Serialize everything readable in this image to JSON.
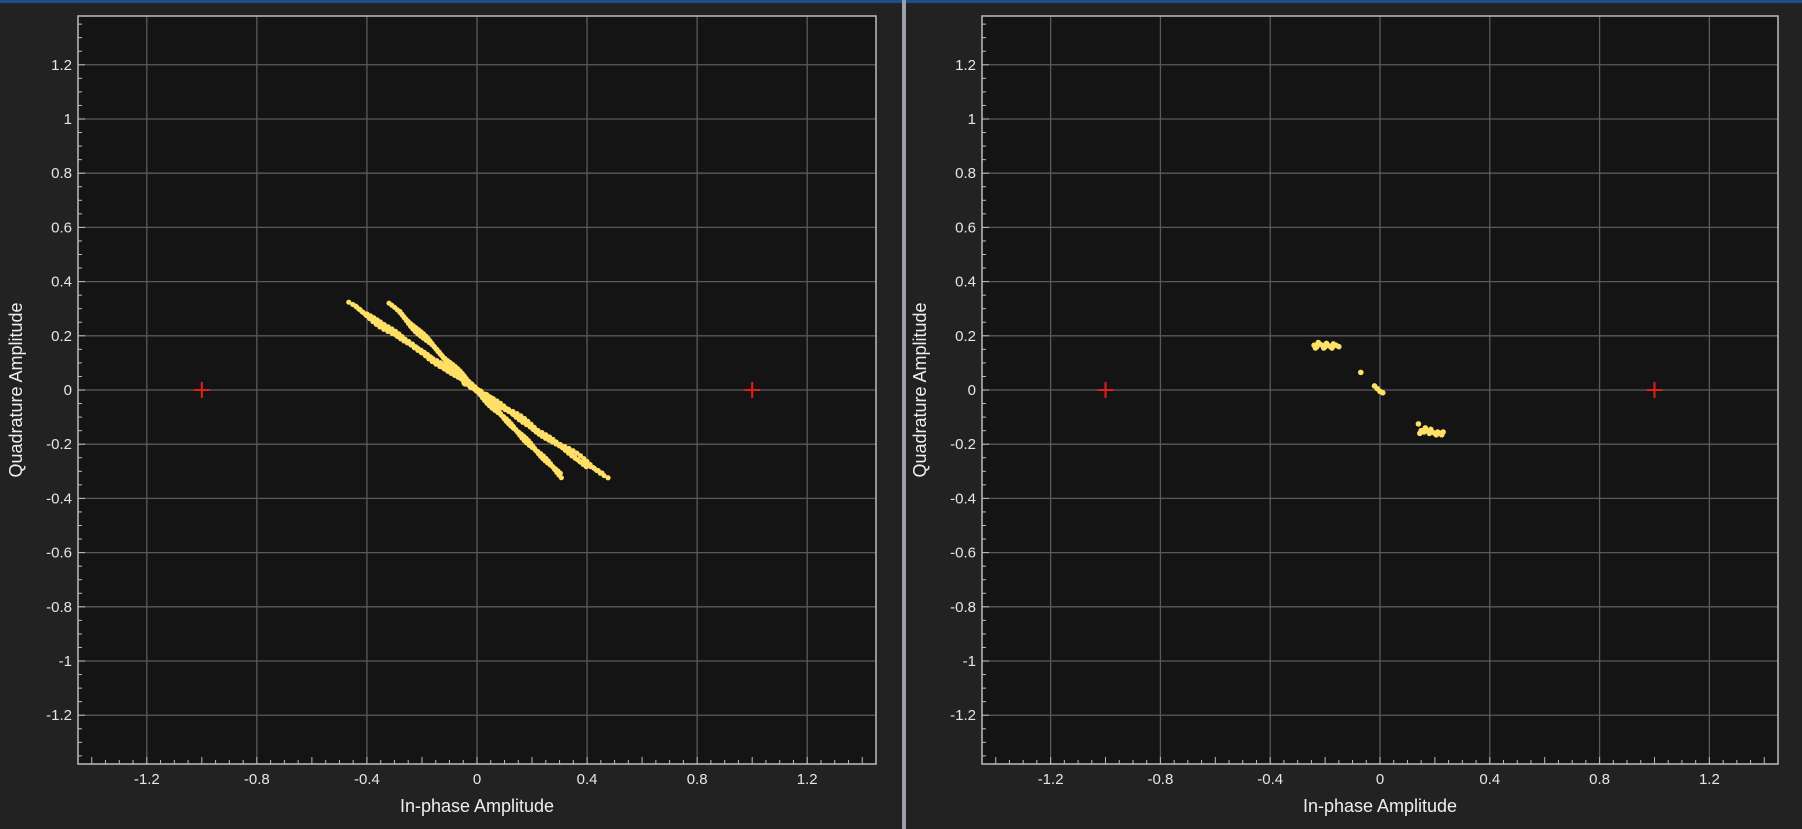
{
  "colors": {
    "background": "#222222",
    "plot_area": "#141414",
    "grid": "#5a5a5a",
    "axis_box": "#bdbdbd",
    "text": "#e6e6e6",
    "samples": "#ffe066",
    "reference": "#e0201b",
    "window_accent": "#1f4e8c"
  },
  "chart_data": [
    {
      "type": "scatter",
      "xlabel": "In-phase Amplitude",
      "ylabel": "Quadrature Amplitude",
      "xlim": [
        -1.45,
        1.45
      ],
      "ylim": [
        -1.38,
        1.38
      ],
      "xticks": [
        -1.2,
        -0.8,
        -0.4,
        0,
        0.4,
        0.8,
        1.2
      ],
      "yticks": [
        1.2,
        1,
        0.8,
        0.6,
        0.4,
        0.2,
        0,
        -0.2,
        -0.4,
        -0.6,
        -0.8,
        -1,
        -1.2
      ],
      "xtick_labels": [
        "-1.2",
        "-0.8",
        "-0.4",
        "0",
        "0.4",
        "0.8",
        "1.2"
      ],
      "ytick_labels": [
        "1.2",
        "1",
        "0.8",
        "0.6",
        "0.4",
        "0.2",
        "0",
        "-0.2",
        "-0.4",
        "-0.6",
        "-0.8",
        "-1",
        "-1.2"
      ],
      "grid": true,
      "reference_constellation": [
        [
          -1,
          0
        ],
        [
          1,
          0
        ]
      ],
      "series": [
        {
          "marker": "dot",
          "strokes": [
            {
              "from": [
                -0.47,
                0.32
              ],
              "to": [
                0.48,
                -0.32
              ],
              "width": 0.01
            },
            {
              "from": [
                -0.44,
                0.31
              ],
              "to": [
                0.45,
                -0.31
              ],
              "width": 0.008
            },
            {
              "from": [
                -0.32,
                0.32
              ],
              "to": [
                0.31,
                -0.32
              ],
              "width": 0.007
            },
            {
              "from": [
                -0.28,
                0.29
              ],
              "to": [
                0.3,
                -0.31
              ],
              "width": 0.006
            },
            {
              "from": [
                -0.4,
                0.28
              ],
              "to": [
                0.4,
                -0.28
              ],
              "width": 0.006
            },
            {
              "from": [
                -0.05,
                0.03
              ],
              "to": [
                0.05,
                -0.03
              ],
              "width": 0.005
            }
          ]
        }
      ]
    },
    {
      "type": "scatter",
      "xlabel": "In-phase Amplitude",
      "ylabel": "Quadrature Amplitude",
      "xlim": [
        -1.45,
        1.45
      ],
      "ylim": [
        -1.38,
        1.38
      ],
      "xticks": [
        -1.2,
        -0.8,
        -0.4,
        0,
        0.4,
        0.8,
        1.2
      ],
      "yticks": [
        1.2,
        1,
        0.8,
        0.6,
        0.4,
        0.2,
        0,
        -0.2,
        -0.4,
        -0.6,
        -0.8,
        -1,
        -1.2
      ],
      "xtick_labels": [
        "-1.2",
        "-0.8",
        "-0.4",
        "0",
        "0.4",
        "0.8",
        "1.2"
      ],
      "ytick_labels": [
        "1.2",
        "1",
        "0.8",
        "0.6",
        "0.4",
        "0.2",
        "0",
        "-0.2",
        "-0.4",
        "-0.6",
        "-0.8",
        "-1",
        "-1.2"
      ],
      "grid": true,
      "reference_constellation": [
        [
          -1,
          0
        ],
        [
          1,
          0
        ]
      ],
      "series": [
        {
          "marker": "dot",
          "points": [
            [
              -0.24,
              0.165
            ],
            [
              -0.23,
              0.16
            ],
            [
              -0.22,
              0.17
            ],
            [
              -0.21,
              0.165
            ],
            [
              -0.2,
              0.16
            ],
            [
              -0.19,
              0.165
            ],
            [
              -0.18,
              0.16
            ],
            [
              -0.17,
              0.17
            ],
            [
              -0.16,
              0.165
            ],
            [
              -0.15,
              0.16
            ],
            [
              -0.235,
              0.155
            ],
            [
              -0.205,
              0.155
            ],
            [
              -0.175,
              0.155
            ],
            [
              -0.225,
              0.175
            ],
            [
              -0.195,
              0.172
            ],
            [
              -0.07,
              0.065
            ],
            [
              -0.02,
              0.015
            ],
            [
              -0.01,
              0.005
            ],
            [
              0.0,
              -0.005
            ],
            [
              0.01,
              -0.01
            ],
            [
              0.14,
              -0.125
            ],
            [
              0.15,
              -0.15
            ],
            [
              0.16,
              -0.155
            ],
            [
              0.17,
              -0.15
            ],
            [
              0.18,
              -0.16
            ],
            [
              0.19,
              -0.155
            ],
            [
              0.2,
              -0.16
            ],
            [
              0.21,
              -0.155
            ],
            [
              0.22,
              -0.16
            ],
            [
              0.23,
              -0.155
            ],
            [
              0.165,
              -0.14
            ],
            [
              0.185,
              -0.145
            ],
            [
              0.205,
              -0.165
            ],
            [
              0.225,
              -0.165
            ],
            [
              0.145,
              -0.16
            ]
          ]
        }
      ]
    }
  ]
}
